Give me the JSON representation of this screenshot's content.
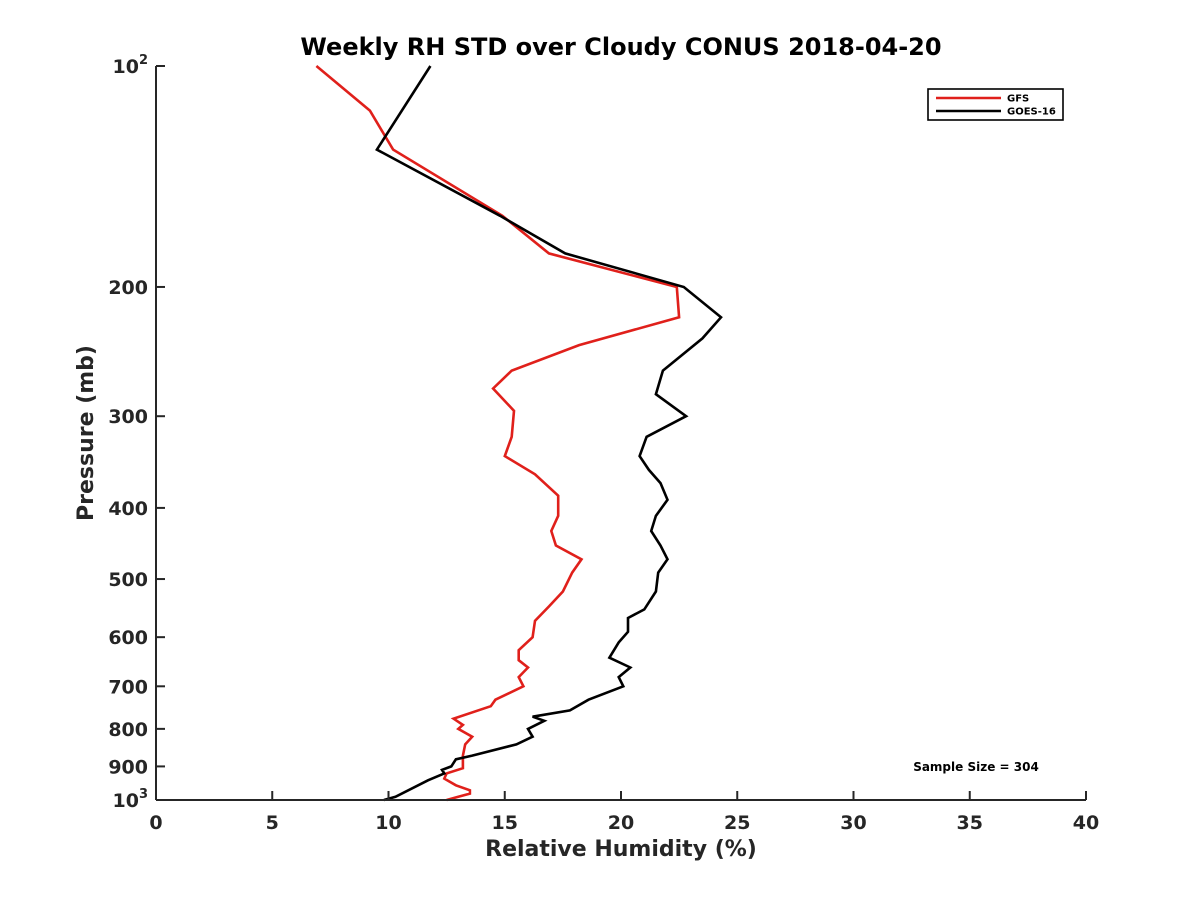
{
  "chart_data": {
    "type": "line",
    "title": "Weekly RH STD over Cloudy CONUS 2018-04-20",
    "xlabel": "Relative Humidity (%)",
    "ylabel": "Pressure (mb)",
    "xlim": [
      0,
      40
    ],
    "ylim": [
      100,
      1000
    ],
    "yscale": "log",
    "y_reversed": true,
    "xticks": [
      0,
      5,
      10,
      15,
      20,
      25,
      30,
      35,
      40
    ],
    "yticks": [
      {
        "value": 100,
        "base": "10",
        "exp": "2"
      },
      {
        "value": 200,
        "label": "200"
      },
      {
        "value": 300,
        "label": "300"
      },
      {
        "value": 400,
        "label": "400"
      },
      {
        "value": 500,
        "label": "500"
      },
      {
        "value": 600,
        "label": "600"
      },
      {
        "value": 700,
        "label": "700"
      },
      {
        "value": 800,
        "label": "800"
      },
      {
        "value": 900,
        "label": "900"
      },
      {
        "value": 1000,
        "base": "10",
        "exp": "3"
      }
    ],
    "grid": false,
    "legend_position": "top-right",
    "annotation": "Sample Size = 304",
    "series": [
      {
        "name": "GFS",
        "color": "#e0201b",
        "points": [
          [
            6.9,
            100
          ],
          [
            9.2,
            115
          ],
          [
            10.2,
            130
          ],
          [
            14.9,
            160
          ],
          [
            16.9,
            180
          ],
          [
            22.4,
            200
          ],
          [
            22.5,
            220
          ],
          [
            18.2,
            240
          ],
          [
            15.3,
            260
          ],
          [
            14.5,
            275
          ],
          [
            15.4,
            295
          ],
          [
            15.3,
            320
          ],
          [
            15.0,
            340
          ],
          [
            16.3,
            360
          ],
          [
            17.3,
            385
          ],
          [
            17.3,
            410
          ],
          [
            17.0,
            430
          ],
          [
            17.2,
            450
          ],
          [
            18.3,
            470
          ],
          [
            17.9,
            490
          ],
          [
            17.5,
            520
          ],
          [
            16.9,
            545
          ],
          [
            16.3,
            570
          ],
          [
            16.2,
            600
          ],
          [
            15.6,
            625
          ],
          [
            15.6,
            645
          ],
          [
            16.0,
            660
          ],
          [
            15.6,
            680
          ],
          [
            15.8,
            700
          ],
          [
            14.6,
            730
          ],
          [
            14.4,
            745
          ],
          [
            12.8,
            775
          ],
          [
            13.2,
            790
          ],
          [
            13.0,
            800
          ],
          [
            13.6,
            820
          ],
          [
            13.3,
            840
          ],
          [
            13.2,
            870
          ],
          [
            13.2,
            890
          ],
          [
            13.2,
            905
          ],
          [
            12.5,
            920
          ],
          [
            12.4,
            935
          ],
          [
            12.9,
            955
          ],
          [
            13.5,
            970
          ],
          [
            13.5,
            980
          ],
          [
            13.0,
            990
          ],
          [
            12.5,
            1000
          ]
        ]
      },
      {
        "name": "GOES-16",
        "color": "#000000",
        "points": [
          [
            11.8,
            100
          ],
          [
            9.5,
            130
          ],
          [
            14.8,
            160
          ],
          [
            17.6,
            180
          ],
          [
            22.7,
            200
          ],
          [
            24.3,
            220
          ],
          [
            23.5,
            235
          ],
          [
            21.8,
            260
          ],
          [
            21.5,
            280
          ],
          [
            22.8,
            300
          ],
          [
            21.1,
            320
          ],
          [
            20.8,
            340
          ],
          [
            21.2,
            355
          ],
          [
            21.7,
            370
          ],
          [
            22.0,
            390
          ],
          [
            21.5,
            410
          ],
          [
            21.3,
            430
          ],
          [
            21.7,
            450
          ],
          [
            22.0,
            470
          ],
          [
            21.6,
            490
          ],
          [
            21.5,
            520
          ],
          [
            21.0,
            550
          ],
          [
            20.3,
            565
          ],
          [
            20.3,
            590
          ],
          [
            19.9,
            610
          ],
          [
            19.5,
            640
          ],
          [
            20.4,
            660
          ],
          [
            19.9,
            680
          ],
          [
            20.1,
            700
          ],
          [
            18.6,
            730
          ],
          [
            17.8,
            755
          ],
          [
            16.2,
            770
          ],
          [
            16.7,
            780
          ],
          [
            16.0,
            800
          ],
          [
            16.2,
            820
          ],
          [
            15.5,
            840
          ],
          [
            13.6,
            870
          ],
          [
            12.9,
            880
          ],
          [
            12.7,
            900
          ],
          [
            12.3,
            910
          ],
          [
            12.4,
            920
          ],
          [
            11.7,
            940
          ],
          [
            10.3,
            990
          ],
          [
            9.8,
            1000
          ]
        ]
      }
    ]
  }
}
